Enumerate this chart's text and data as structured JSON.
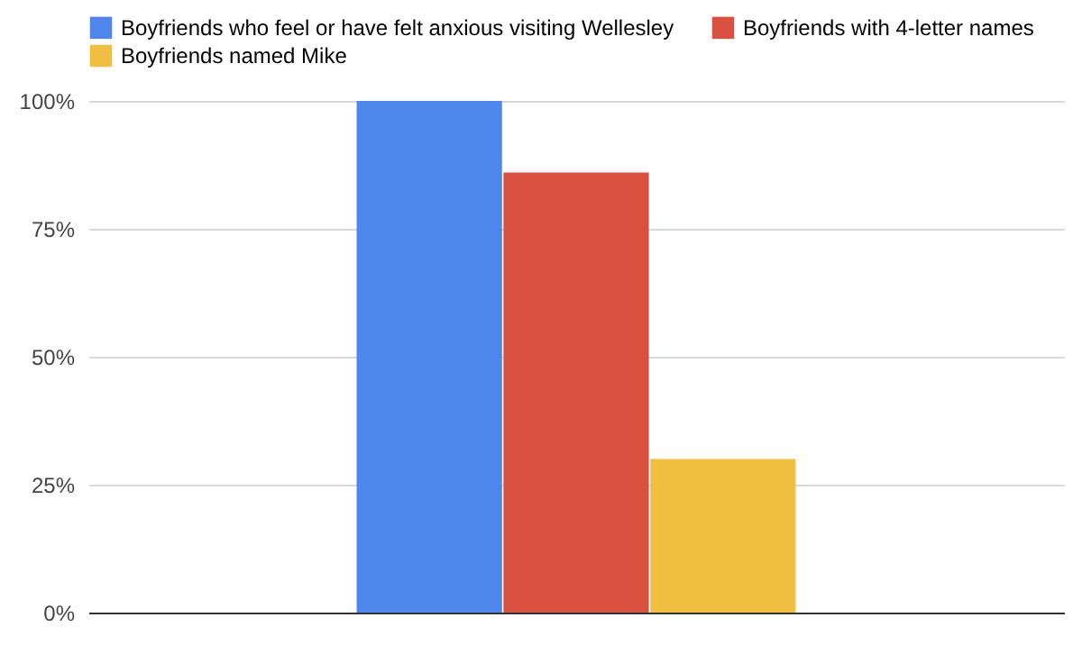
{
  "chart_data": {
    "type": "bar",
    "categories": [
      null
    ],
    "series": [
      {
        "name": "Boyfriends who feel or have felt anxious visiting Wellesley",
        "color": "#4f86ec",
        "values": [
          100
        ]
      },
      {
        "name": "Boyfriends with 4-letter names",
        "color": "#db5140",
        "values": [
          86
        ]
      },
      {
        "name": "Boyfriends named Mike",
        "color": "#f1bf42",
        "values": [
          30
        ]
      }
    ],
    "ylim": [
      0,
      100
    ],
    "yticks": [
      {
        "value": 0,
        "label": "0%"
      },
      {
        "value": 25,
        "label": "25%"
      },
      {
        "value": 50,
        "label": "50%"
      },
      {
        "value": 75,
        "label": "75%"
      },
      {
        "value": 100,
        "label": "100%"
      }
    ],
    "grid": "y",
    "legend": "top",
    "tick_labels": "y"
  }
}
